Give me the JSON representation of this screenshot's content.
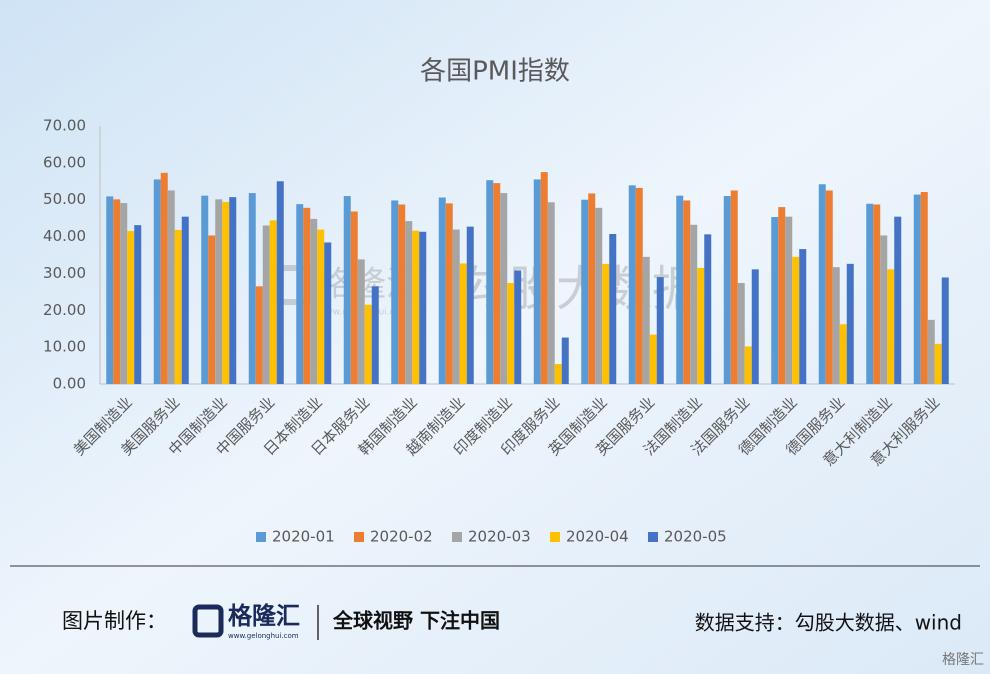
{
  "chart_data": {
    "type": "bar",
    "title": "各国PMI指数",
    "categories": [
      "美国制造业",
      "美国服务业",
      "中国制造业",
      "中国服务业",
      "日本制造业",
      "日本服务业",
      "韩国制造业",
      "越南制造业",
      "印度制造业",
      "印度服务业",
      "英国制造业",
      "英国服务业",
      "法国制造业",
      "法国服务业",
      "德国制造业",
      "德国服务业",
      "意大利制造业",
      "意大利服务业"
    ],
    "series": [
      {
        "name": "2020-01",
        "color": "#5b9bd5",
        "values": [
          50.9,
          55.5,
          51.1,
          51.8,
          48.8,
          51.0,
          49.8,
          50.6,
          55.3,
          55.5,
          50.0,
          53.9,
          51.1,
          51.0,
          45.3,
          54.2,
          48.9,
          51.4
        ]
      },
      {
        "name": "2020-02",
        "color": "#ed7d31",
        "values": [
          50.1,
          57.3,
          40.3,
          26.5,
          47.8,
          46.8,
          48.7,
          49.0,
          54.5,
          57.5,
          51.7,
          53.2,
          49.8,
          52.5,
          48.0,
          52.5,
          48.7,
          52.1
        ]
      },
      {
        "name": "2020-03",
        "color": "#a5a5a5",
        "values": [
          49.1,
          52.5,
          50.1,
          43.0,
          44.8,
          33.8,
          44.2,
          41.9,
          51.8,
          49.3,
          47.8,
          34.5,
          43.2,
          27.4,
          45.4,
          31.7,
          40.3,
          17.4
        ]
      },
      {
        "name": "2020-04",
        "color": "#ffc000",
        "values": [
          41.5,
          41.8,
          49.4,
          44.4,
          41.9,
          21.5,
          41.6,
          32.7,
          27.4,
          5.4,
          32.6,
          13.4,
          31.5,
          10.2,
          34.5,
          16.2,
          31.1,
          10.9
        ]
      },
      {
        "name": "2020-05",
        "color": "#4472c4",
        "values": [
          43.1,
          45.4,
          50.7,
          55.0,
          38.4,
          26.5,
          41.3,
          42.7,
          30.8,
          12.6,
          40.7,
          29.0,
          40.6,
          31.1,
          36.6,
          32.6,
          45.4,
          28.9
        ]
      }
    ],
    "ylim": [
      0,
      70
    ],
    "yticks": [
      {
        "value": 0,
        "label": "0.00"
      },
      {
        "value": 10,
        "label": "10.00"
      },
      {
        "value": 20,
        "label": "20.00"
      },
      {
        "value": 30,
        "label": "30.00"
      },
      {
        "value": 40,
        "label": "40.00"
      },
      {
        "value": 50,
        "label": "50.00"
      },
      {
        "value": 60,
        "label": "60.00"
      },
      {
        "value": 70,
        "label": "70.00"
      }
    ],
    "grid": false,
    "legend": "bottom"
  },
  "watermark": {
    "brand": "格隆汇",
    "url": "www.gelonghui.com",
    "text": "勾股大数据"
  },
  "footer": {
    "made_by": "图片制作：",
    "brand": "格隆汇",
    "url": "www.gelonghui.com",
    "slogan": "全球视野 下注中国",
    "source": "数据支持：勾股大数据、wind",
    "corner": "格隆汇"
  }
}
